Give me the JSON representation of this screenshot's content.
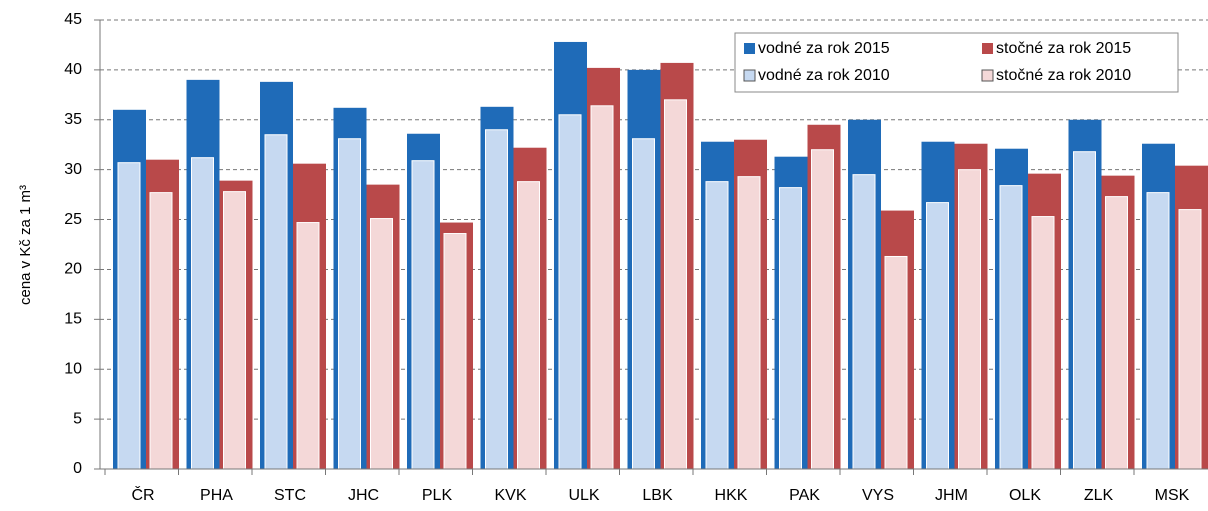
{
  "chart_data": {
    "type": "overlap_bar",
    "y_label": "cena v Kč za 1 m³",
    "categories": [
      "ČR",
      "PHA",
      "STC",
      "JHC",
      "PLK",
      "KVK",
      "ULK",
      "LBK",
      "HKK",
      "PAK",
      "VYS",
      "JHM",
      "OLK",
      "ZLK",
      "MSK"
    ],
    "series": [
      {
        "name": "vodné za rok 2015",
        "color": "#1f6bb8",
        "values": [
          36,
          39,
          38.8,
          36.2,
          33.6,
          36.3,
          42.8,
          40,
          32.8,
          31.3,
          35,
          32.8,
          32.1,
          35,
          32.6
        ]
      },
      {
        "name": "stočné za rok 2015",
        "color": "#b9494a",
        "values": [
          31,
          28.9,
          30.6,
          28.5,
          24.7,
          32.2,
          40.2,
          40.7,
          33,
          34.5,
          25.9,
          32.6,
          29.6,
          29.4,
          30.4
        ]
      },
      {
        "name": "vodné za rok 2010",
        "color": "#c6d9f1",
        "values": [
          30.7,
          31.2,
          33.5,
          33.1,
          30.9,
          34,
          35.5,
          33.1,
          28.8,
          28.2,
          29.5,
          26.7,
          28.4,
          31.8,
          27.7
        ]
      },
      {
        "name": "stočné za rok 2010",
        "color": "#f4d8d8",
        "values": [
          27.7,
          27.8,
          24.7,
          25.1,
          23.6,
          28.8,
          36.4,
          37,
          29.3,
          32,
          21.3,
          30,
          25.3,
          27.3,
          26
        ]
      }
    ],
    "ylim": [
      0,
      45
    ],
    "yticks": [
      0,
      5,
      10,
      15,
      20,
      25,
      30,
      35,
      40,
      45
    ],
    "grid": true,
    "legend": "top-right"
  }
}
